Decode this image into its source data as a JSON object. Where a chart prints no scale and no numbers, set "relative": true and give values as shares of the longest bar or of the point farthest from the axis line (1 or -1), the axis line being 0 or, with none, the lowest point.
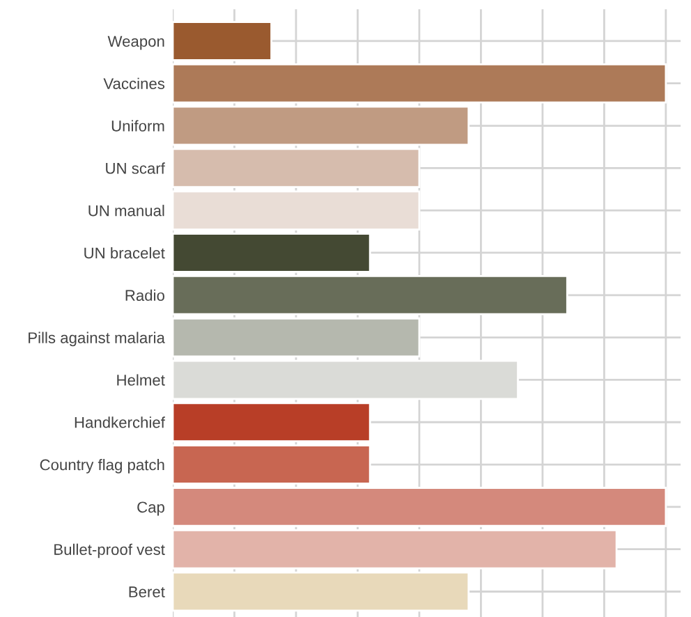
{
  "chart_data": {
    "type": "bar",
    "orientation": "horizontal",
    "relative": true,
    "grid": true,
    "legend": false,
    "categories": [
      "Weapon",
      "Vaccines",
      "Uniform",
      "UN scarf",
      "UN manual",
      "UN bracelet",
      "Radio",
      "Pills against malaria",
      "Helmet",
      "Handkerchief",
      "Country flag patch",
      "Cap",
      "Bullet-proof vest",
      "Beret"
    ],
    "values": [
      0.2,
      1,
      0.6,
      0.5,
      0.5,
      0.4,
      0.8,
      0.5,
      0.7,
      0.4,
      0.4,
      1,
      0.9,
      0.6
    ],
    "colors": [
      "#9a5a2f",
      "#ad7a58",
      "#c09b82",
      "#d6bcad",
      "#e9ddd6",
      "#444933",
      "#686d59",
      "#b5b8ae",
      "#dadbd7",
      "#b83e27",
      "#c86651",
      "#d4897c",
      "#e2b3a9",
      "#e8d9ba"
    ]
  }
}
